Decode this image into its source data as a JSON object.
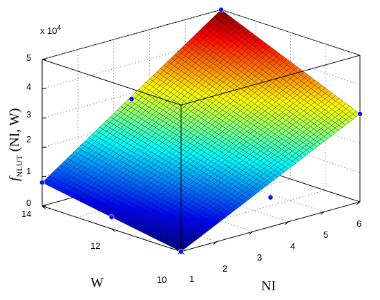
{
  "chart_data": {
    "type": "surface",
    "zlabel_main": "f",
    "zlabel_sub": "NLUT",
    "zlabel_args": " (NI, W)",
    "xlabel": "NI",
    "ylabel": "W",
    "z_multiplier_label": "x 10",
    "z_multiplier_exp": "4",
    "x_ticks": [
      "1",
      "2",
      "3",
      "4",
      "5",
      "6"
    ],
    "y_ticks": [
      "10",
      "12",
      "14"
    ],
    "z_ticks": [
      "0",
      "1",
      "2",
      "3",
      "4",
      "5"
    ],
    "xlim": [
      1,
      6
    ],
    "ylim": [
      10,
      14
    ],
    "zlim": [
      0,
      50000
    ],
    "surface_corners": [
      {
        "NI": 1,
        "W": 10,
        "f": 0
      },
      {
        "NI": 1,
        "W": 14,
        "f": 8000
      },
      {
        "NI": 6,
        "W": 10,
        "f": 30000
      },
      {
        "NI": 6,
        "W": 14,
        "f": 50000
      }
    ],
    "marker_points": [
      {
        "NI": 1,
        "W": 10,
        "f": 0
      },
      {
        "NI": 1,
        "W": 12,
        "f": 4000
      },
      {
        "NI": 1,
        "W": 14,
        "f": 8000
      },
      {
        "NI": 3.5,
        "W": 10,
        "f": 10000
      },
      {
        "NI": 6,
        "W": 10,
        "f": 30000
      },
      {
        "NI": 6,
        "W": 14,
        "f": 50000
      },
      {
        "NI": 3.5,
        "W": 14,
        "f": 28000
      },
      {
        "NI": 1,
        "W": 14,
        "f": 8000
      }
    ],
    "grid": true,
    "colormap": "jet"
  }
}
